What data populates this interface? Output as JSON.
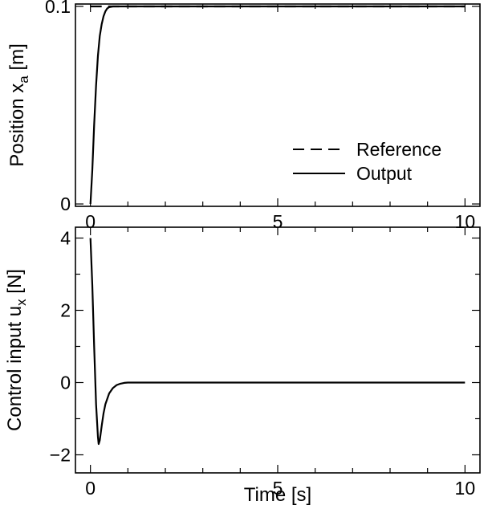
{
  "chart_data": [
    {
      "type": "line",
      "xlabel": "",
      "ylabel": "Position x",
      "ylabel_sub": "a",
      "ylabel_unit": " [m]",
      "xlim": [
        -0.4,
        10.4
      ],
      "ylim": [
        -0.0012,
        0.1012
      ],
      "xticks": [
        0,
        5,
        10
      ],
      "xtick_labels": [
        "0",
        "5",
        "10"
      ],
      "yticks": [
        0,
        0.1
      ],
      "ytick_labels": [
        "0",
        "0.1"
      ],
      "grid": false,
      "legend": {
        "position": "center-right",
        "entries": [
          "Reference",
          "Output"
        ]
      },
      "series": [
        {
          "name": "Reference",
          "style": "dashed",
          "x": [
            0,
            10
          ],
          "y": [
            0.1,
            0.1
          ]
        },
        {
          "name": "Output",
          "style": "solid",
          "x": [
            0,
            0.05,
            0.1,
            0.15,
            0.2,
            0.25,
            0.3,
            0.35,
            0.4,
            0.45,
            0.5,
            0.6,
            0.7,
            0.8,
            1.0,
            2.0,
            5.0,
            10.0
          ],
          "y": [
            0,
            0.017,
            0.04,
            0.06,
            0.075,
            0.085,
            0.091,
            0.095,
            0.0975,
            0.099,
            0.0996,
            0.1,
            0.1,
            0.1,
            0.1,
            0.1,
            0.1,
            0.1
          ]
        }
      ]
    },
    {
      "type": "line",
      "xlabel": "Time [s]",
      "ylabel": "Control input u",
      "ylabel_sub": "x",
      "ylabel_unit": " [N]",
      "xlim": [
        -0.4,
        10.4
      ],
      "ylim": [
        -2.5,
        4.3
      ],
      "xticks": [
        0,
        5,
        10
      ],
      "xtick_labels": [
        "0",
        "5",
        "10"
      ],
      "yticks": [
        -2,
        0,
        2,
        4
      ],
      "ytick_labels": [
        "−2",
        "0",
        "2",
        "4"
      ],
      "grid": false,
      "series": [
        {
          "style": "solid",
          "x": [
            0,
            0.05,
            0.1,
            0.15,
            0.2,
            0.22,
            0.25,
            0.3,
            0.35,
            0.4,
            0.5,
            0.6,
            0.7,
            0.8,
            0.9,
            1.0,
            1.5,
            2.0,
            5.0,
            10.0
          ],
          "y": [
            4.0,
            2.7,
            1.0,
            -0.6,
            -1.5,
            -1.7,
            -1.6,
            -1.2,
            -0.85,
            -0.6,
            -0.3,
            -0.15,
            -0.07,
            -0.03,
            -0.01,
            0.0,
            0.0,
            0.0,
            0.0,
            0.0
          ]
        }
      ]
    }
  ]
}
